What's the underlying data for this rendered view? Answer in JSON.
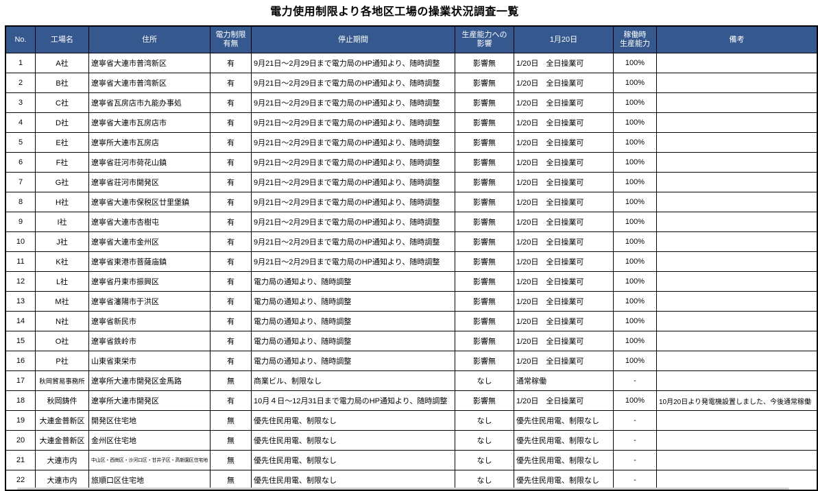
{
  "page": {
    "title": "電力使用制限より各地区工場の操業状況調査一覧"
  },
  "colors": {
    "header_bg": "#35598F",
    "header_text": "#FFFFFF",
    "border": "#000000",
    "title_text": "#000000"
  },
  "table": {
    "columns": [
      "No.",
      "工場名",
      "住所",
      "電力制限\n有無",
      "停止期間",
      "生産能力への\n影響",
      "1月20日",
      "稼働時\n生産能力",
      "備考"
    ],
    "rows": [
      {
        "no": "1",
        "name": "A社",
        "address": "遼寧省大連市普湾新区",
        "restriction": "有",
        "period": "9月21日～2月29日まで電力局のHP通知より、随時調整",
        "impact": "影響無",
        "jan20": "1/20日　全日操業可",
        "capacity": "100%",
        "remark": ""
      },
      {
        "no": "2",
        "name": "B社",
        "address": "遼寧省大連市普湾新区",
        "restriction": "有",
        "period": "9月21日～2月29日まで電力局のHP通知より、随時調整",
        "impact": "影響無",
        "jan20": "1/20日　全日操業可",
        "capacity": "100%",
        "remark": ""
      },
      {
        "no": "3",
        "name": "C社",
        "address": "遼寧省瓦房店市九能办事処",
        "restriction": "有",
        "period": "9月21日～2月29日まで電力局のHP通知より、随時調整",
        "impact": "影響無",
        "jan20": "1/20日　全日操業可",
        "capacity": "100%",
        "remark": ""
      },
      {
        "no": "4",
        "name": "D社",
        "address": "遼寧省大連市瓦房店市",
        "restriction": "有",
        "period": "9月21日～2月29日まで電力局のHP通知より、随時調整",
        "impact": "影響無",
        "jan20": "1/20日　全日操業可",
        "capacity": "100%",
        "remark": ""
      },
      {
        "no": "5",
        "name": "E社",
        "address": "遼寧所大連市瓦房店",
        "restriction": "有",
        "period": "9月21日～2月29日まで電力局のHP通知より、随時調整",
        "impact": "影響無",
        "jan20": "1/20日　全日操業可",
        "capacity": "100%",
        "remark": ""
      },
      {
        "no": "6",
        "name": "F社",
        "address": "遼寧省荘河市荷花山鎮",
        "restriction": "有",
        "period": "9月21日～2月29日まで電力局のHP通知より、随時調整",
        "impact": "影響無",
        "jan20": "1/20日　全日操業可",
        "capacity": "100%",
        "remark": ""
      },
      {
        "no": "7",
        "name": "G社",
        "address": "遼寧省荘河市開発区",
        "restriction": "有",
        "period": "9月21日～2月29日まで電力局のHP通知より、随時調整",
        "impact": "影響無",
        "jan20": "1/20日　全日操業可",
        "capacity": "100%",
        "remark": ""
      },
      {
        "no": "8",
        "name": "H社",
        "address": "遼寧省大連市保税区廿里堡鎮",
        "restriction": "有",
        "period": "9月21日～2月29日まで電力局のHP通知より、随時調整",
        "impact": "影響無",
        "jan20": "1/20日　全日操業可",
        "capacity": "100%",
        "remark": ""
      },
      {
        "no": "9",
        "name": "I社",
        "address": "遼寧省大連市杏樹屯",
        "restriction": "有",
        "period": "9月21日～2月29日まで電力局のHP通知より、随時調整",
        "impact": "影響無",
        "jan20": "1/20日　全日操業可",
        "capacity": "100%",
        "remark": ""
      },
      {
        "no": "10",
        "name": "J社",
        "address": "遼寧省大連市金州区",
        "restriction": "有",
        "period": "9月21日～2月29日まで電力局のHP通知より、随時調整",
        "impact": "影響無",
        "jan20": "1/20日　全日操業可",
        "capacity": "100%",
        "remark": ""
      },
      {
        "no": "11",
        "name": "K社",
        "address": "遼寧省東港市菩薩庙鎮",
        "restriction": "有",
        "period": "9月21日～2月29日まで電力局のHP通知より、随時調整",
        "impact": "影響無",
        "jan20": "1/20日　全日操業可",
        "capacity": "100%",
        "remark": ""
      },
      {
        "no": "12",
        "name": "L社",
        "address": "遼寧省丹東市振興区",
        "restriction": "有",
        "period": "電力局の通知より、随時調整",
        "impact": "影響無",
        "jan20": "1/20日　全日操業可",
        "capacity": "100%",
        "remark": ""
      },
      {
        "no": "13",
        "name": "M社",
        "address": "遼寧省瀋陽市于洪区",
        "restriction": "有",
        "period": "電力局の通知より、随時調整",
        "impact": "影響無",
        "jan20": "1/20日　全日操業可",
        "capacity": "100%",
        "remark": ""
      },
      {
        "no": "14",
        "name": "N社",
        "address": "遼寧省新民市",
        "restriction": "有",
        "period": "電力局の通知より、随時調整",
        "impact": "影響無",
        "jan20": "1/20日　全日操業可",
        "capacity": "100%",
        "remark": ""
      },
      {
        "no": "15",
        "name": "O社",
        "address": "遼寧省鉄岭市",
        "restriction": "有",
        "period": "電力局の通知より、随時調整",
        "impact": "影響無",
        "jan20": "1/20日　全日操業可",
        "capacity": "100%",
        "remark": ""
      },
      {
        "no": "16",
        "name": "P社",
        "address": "山東省東栄市",
        "restriction": "有",
        "period": "電力局の通知より、随時調整",
        "impact": "影響無",
        "jan20": "1/20日　全日操業可",
        "capacity": "100%",
        "remark": ""
      },
      {
        "no": "17",
        "name": "秋岡貿易事務所",
        "address": "遼寧所大連市開発区金馬路",
        "restriction": "無",
        "period": "商業ビル、制限なし",
        "impact": "なし",
        "jan20": "通常稼働",
        "capacity": "-",
        "remark": ""
      },
      {
        "no": "18",
        "name": "秋岡鋳件",
        "address": "遼寧所大連市開発区",
        "restriction": "有",
        "period": "10月４日～12月31日まで電力局のHP通知より、随時調整",
        "impact": "影響無",
        "jan20": "1/20日　全日操業可",
        "capacity": "100%",
        "remark": "10月20日より発電機設置しました、今後通常稼働"
      },
      {
        "no": "19",
        "name": "大連金普新区",
        "address": "開発区住宅地",
        "restriction": "無",
        "period": "優先住民用電、制限なし",
        "impact": "なし",
        "jan20": "優先住民用電、制限なし",
        "capacity": "-",
        "remark": ""
      },
      {
        "no": "20",
        "name": "大連金普新区",
        "address": "金州区住宅地",
        "restriction": "無",
        "period": "優先住民用電、制限なし",
        "impact": "なし",
        "jan20": "優先住民用電、制限なし",
        "capacity": "-",
        "remark": ""
      },
      {
        "no": "21",
        "name": "大連市内",
        "address": "中山区・西崗区・沙河口区・甘井子区・高新園区住宅地",
        "restriction": "無",
        "period": "優先住民用電、制限なし",
        "impact": "なし",
        "jan20": "優先住民用電、制限なし",
        "capacity": "-",
        "remark": ""
      },
      {
        "no": "22",
        "name": "大連市内",
        "address": "旅順口区住宅地",
        "restriction": "無",
        "period": "優先住民用電、制限なし",
        "impact": "なし",
        "jan20": "優先住民用電、制限なし",
        "capacity": "-",
        "remark": ""
      }
    ]
  }
}
